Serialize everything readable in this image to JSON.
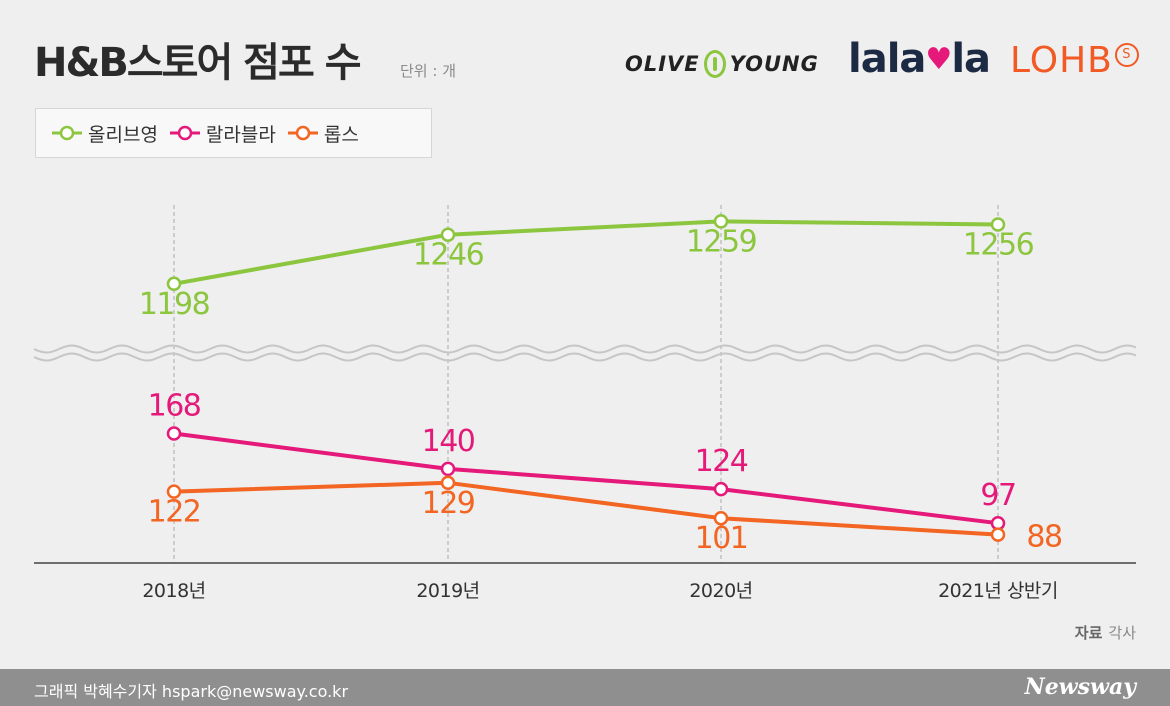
{
  "header": {
    "title": "H&B스토어 점포 수",
    "unit": "단위 : 개"
  },
  "logos": {
    "olive_left": "OLIVE",
    "olive_right": "YOUNG",
    "lalavla_a": "lala",
    "lalavla_heart": "♥",
    "lalavla_b": "la",
    "lohbs": "LOHB",
    "lohbs_badge": "S"
  },
  "chart_data": {
    "type": "line",
    "categories": [
      "2018년",
      "2019년",
      "2020년",
      "2021년 상반기"
    ],
    "axis_break": true,
    "series": [
      {
        "name": "올리브영",
        "values": [
          1198,
          1246,
          1259,
          1256
        ],
        "color": "#8cc63f"
      },
      {
        "name": "랄라블라",
        "values": [
          168,
          140,
          124,
          97
        ],
        "color": "#e5197a"
      },
      {
        "name": "롭스",
        "values": [
          122,
          129,
          101,
          88
        ],
        "color": "#f26522"
      }
    ],
    "upper_ylim": [
      1150,
      1275
    ],
    "lower_ylim": [
      60,
      200
    ],
    "grid": false,
    "legend": "top-left"
  },
  "footer": {
    "source_label": "자료",
    "source_value": "각사",
    "credit": "그래픽 박혜수기자 hspark@newsway.co.kr",
    "brand": "Newsway"
  }
}
